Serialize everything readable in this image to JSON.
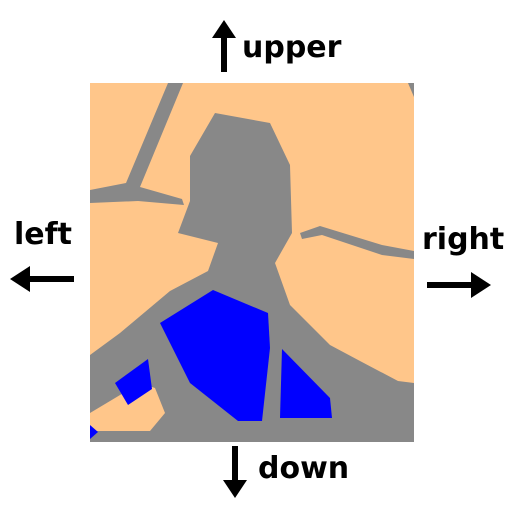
{
  "labels": {
    "upper": "upper",
    "left": "left",
    "right": "right",
    "down": "down"
  },
  "icons": {
    "upper": "arrow-up-icon",
    "left": "arrow-left-icon",
    "right": "arrow-right-icon",
    "down": "arrow-down-icon"
  },
  "colors": {
    "land": "#FFC68A",
    "road": "#888888",
    "water": "#0000FF",
    "text": "#000000"
  }
}
